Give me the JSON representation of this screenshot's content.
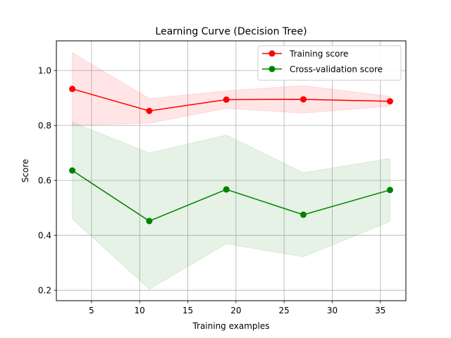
{
  "chart_data": {
    "type": "line",
    "title": "Learning Curve (Decision Tree)",
    "xlabel": "Training examples",
    "ylabel": "Score",
    "xlim": [
      1.35,
      37.65
    ],
    "ylim": [
      0.162,
      1.108
    ],
    "xticks": [
      5,
      10,
      15,
      20,
      25,
      30,
      35
    ],
    "yticks": [
      0.2,
      0.4,
      0.6,
      0.8,
      1.0
    ],
    "ytick_labels": [
      "0.2",
      "0.4",
      "0.6",
      "0.8",
      "1.0"
    ],
    "grid": true,
    "legend_position": "top-right",
    "x": [
      3,
      11,
      19,
      27,
      36
    ],
    "series": [
      {
        "name": "Training score",
        "color": "#ff0000",
        "band_color": "#ff0000",
        "values": [
          0.933,
          0.853,
          0.894,
          0.895,
          0.888
        ],
        "upper": [
          1.065,
          0.898,
          0.926,
          0.945,
          0.906
        ],
        "lower": [
          0.8,
          0.808,
          0.862,
          0.845,
          0.87
        ]
      },
      {
        "name": "Cross-validation score",
        "color": "#008000",
        "band_color": "#008000",
        "values": [
          0.636,
          0.452,
          0.567,
          0.475,
          0.565
        ],
        "upper": [
          0.812,
          0.7,
          0.765,
          0.628,
          0.68
        ],
        "lower": [
          0.46,
          0.204,
          0.369,
          0.322,
          0.45
        ]
      }
    ]
  }
}
